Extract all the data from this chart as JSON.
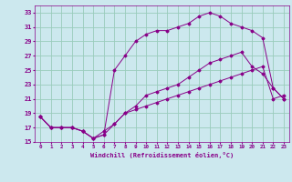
{
  "xlabel": "Windchill (Refroidissement éolien,°C)",
  "background_color": "#cce8ee",
  "grid_color": "#99ccbb",
  "line_color": "#880088",
  "xlim": [
    -0.5,
    23.5
  ],
  "ylim": [
    15,
    34
  ],
  "xticks": [
    0,
    1,
    2,
    3,
    4,
    5,
    6,
    7,
    8,
    9,
    10,
    11,
    12,
    13,
    14,
    15,
    16,
    17,
    18,
    19,
    20,
    21,
    22,
    23
  ],
  "yticks": [
    15,
    17,
    19,
    21,
    23,
    25,
    27,
    29,
    31,
    33
  ],
  "series": [
    [
      18.5,
      17.0,
      17.0,
      17.0,
      16.5,
      15.5,
      16.5,
      17.5,
      19.0,
      19.5,
      20.0,
      20.5,
      21.0,
      21.5,
      22.0,
      22.5,
      23.0,
      23.5,
      24.0,
      24.5,
      25.0,
      25.5,
      21.0,
      21.5
    ],
    [
      18.5,
      17.0,
      17.0,
      17.0,
      16.5,
      15.5,
      16.0,
      17.5,
      19.0,
      20.0,
      21.5,
      22.0,
      22.5,
      23.0,
      24.0,
      25.0,
      26.0,
      26.5,
      27.0,
      27.5,
      25.5,
      24.5,
      22.5,
      21.0
    ],
    [
      18.5,
      17.0,
      17.0,
      17.0,
      16.5,
      15.5,
      16.0,
      25.0,
      27.0,
      29.0,
      30.0,
      30.5,
      30.5,
      31.0,
      31.5,
      32.5,
      33.0,
      32.5,
      31.5,
      31.0,
      30.5,
      29.5,
      22.5,
      21.0
    ]
  ]
}
